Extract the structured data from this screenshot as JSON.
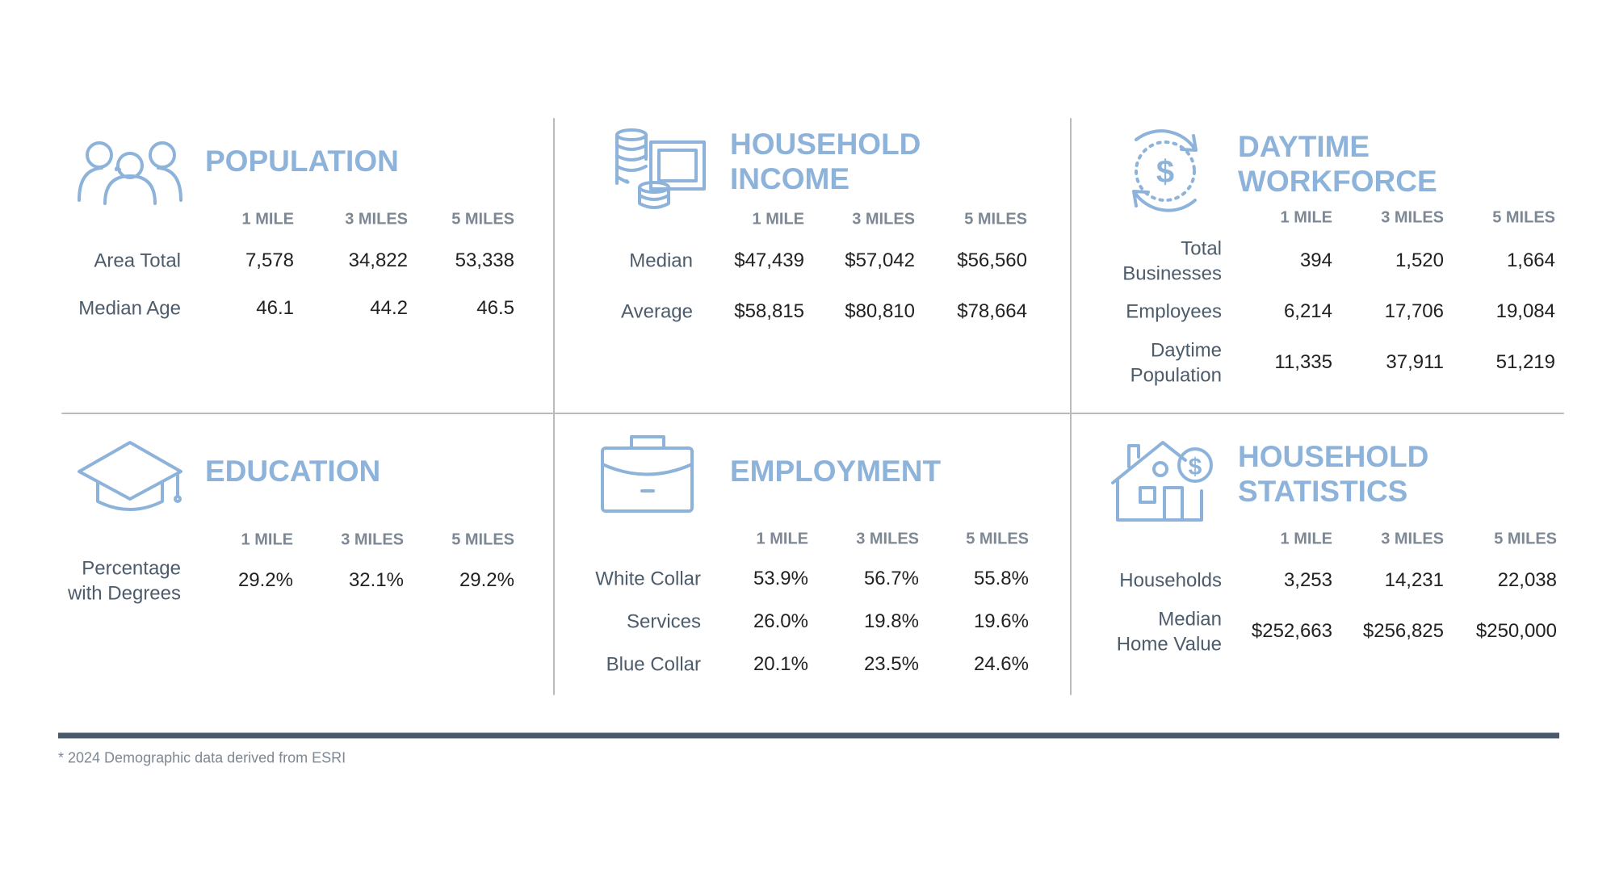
{
  "sections": [
    {
      "title": [
        "POPULATION"
      ],
      "columns": [
        "1 MILE",
        "3 MILES",
        "5 MILES"
      ],
      "rows": [
        {
          "label": [
            "Area Total"
          ],
          "values": [
            "7,578",
            "34,822",
            "53,338"
          ]
        },
        {
          "label": [
            "Median Age"
          ],
          "values": [
            "46.1",
            "44.2",
            "46.5"
          ]
        }
      ]
    },
    {
      "title": [
        "HOUSEHOLD",
        "INCOME"
      ],
      "columns": [
        "1 MILE",
        "3 MILES",
        "5 MILES"
      ],
      "rows": [
        {
          "label": [
            "Median"
          ],
          "values": [
            "$47,439",
            "$57,042",
            "$56,560"
          ]
        },
        {
          "label": [
            "Average"
          ],
          "values": [
            "$58,815",
            "$80,810",
            "$78,664"
          ]
        }
      ]
    },
    {
      "title": [
        "DAYTIME",
        "WORKFORCE"
      ],
      "columns": [
        "1 MILE",
        "3 MILES",
        "5 MILES"
      ],
      "rows": [
        {
          "label": [
            "Total",
            "Businesses"
          ],
          "values": [
            "394",
            "1,520",
            "1,664"
          ]
        },
        {
          "label": [
            "Employees"
          ],
          "values": [
            "6,214",
            "17,706",
            "19,084"
          ]
        },
        {
          "label": [
            "Daytime",
            "Population"
          ],
          "values": [
            "11,335",
            "37,911",
            "51,219"
          ]
        }
      ]
    },
    {
      "title": [
        "EDUCATION"
      ],
      "columns": [
        "1 MILE",
        "3 MILES",
        "5 MILES"
      ],
      "rows": [
        {
          "label": [
            "Percentage",
            "with Degrees"
          ],
          "values": [
            "29.2%",
            "32.1%",
            "29.2%"
          ]
        }
      ]
    },
    {
      "title": [
        "EMPLOYMENT"
      ],
      "columns": [
        "1 MILE",
        "3 MILES",
        "5 MILES"
      ],
      "rows": [
        {
          "label": [
            "White Collar"
          ],
          "values": [
            "53.9%",
            "56.7%",
            "55.8%"
          ]
        },
        {
          "label": [
            "Services"
          ],
          "values": [
            "26.0%",
            "19.8%",
            "19.6%"
          ]
        },
        {
          "label": [
            "Blue Collar"
          ],
          "values": [
            "20.1%",
            "23.5%",
            "24.6%"
          ]
        }
      ]
    },
    {
      "title": [
        "HOUSEHOLD",
        "STATISTICS"
      ],
      "columns": [
        "1 MILE",
        "3 MILES",
        "5 MILES"
      ],
      "rows": [
        {
          "label": [
            "Households"
          ],
          "values": [
            "3,253",
            "14,231",
            "22,038"
          ]
        },
        {
          "label": [
            "Median",
            "Home Value"
          ],
          "values": [
            "$252,663",
            "$256,825",
            "$250,000"
          ]
        }
      ]
    }
  ],
  "footnote": "* 2024 Demographic data derived from ESRI"
}
